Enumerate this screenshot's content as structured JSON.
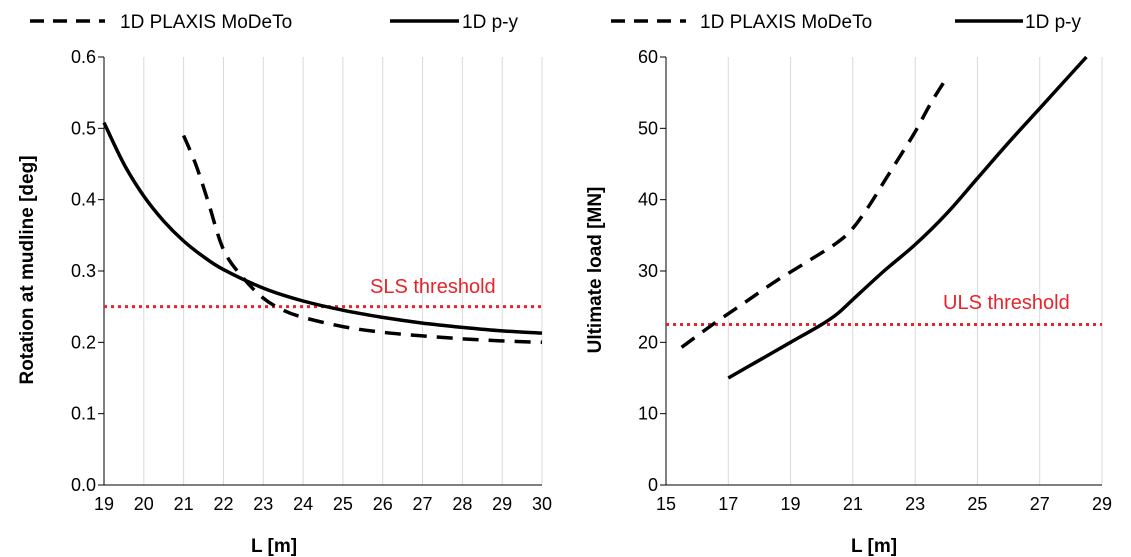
{
  "colors": {
    "line": "#000000",
    "threshold": "#e8242a",
    "grid": "#d9d9d9",
    "axis": "#000000"
  },
  "chart_data": [
    {
      "type": "line",
      "xlabel": "L [m]",
      "ylabel": "Rotation at mudline [deg]",
      "xlim": [
        19,
        30
      ],
      "ylim": [
        0,
        0.6
      ],
      "x_ticks": [
        "19",
        "20",
        "21",
        "22",
        "23",
        "24",
        "25",
        "26",
        "27",
        "28",
        "29",
        "30"
      ],
      "y_ticks": [
        "0.0",
        "0.1",
        "0.2",
        "0.3",
        "0.4",
        "0.5",
        "0.6"
      ],
      "grid": "vertical",
      "legend_position": "top",
      "series": [
        {
          "name": "1D PLAXIS MoDeTo",
          "style": "dashed",
          "x": [
            21,
            21.3,
            21.6,
            22,
            22.5,
            23,
            23.5,
            24,
            25,
            26,
            27,
            28,
            29,
            30
          ],
          "y": [
            0.49,
            0.45,
            0.4,
            0.33,
            0.29,
            0.262,
            0.245,
            0.235,
            0.222,
            0.214,
            0.209,
            0.205,
            0.202,
            0.2
          ]
        },
        {
          "name": "1D p-y",
          "style": "solid",
          "x": [
            19,
            19.5,
            20,
            20.5,
            21,
            21.5,
            22,
            23,
            24,
            25,
            26,
            27,
            28,
            29,
            30
          ],
          "y": [
            0.508,
            0.45,
            0.405,
            0.37,
            0.342,
            0.32,
            0.302,
            0.276,
            0.258,
            0.245,
            0.235,
            0.227,
            0.221,
            0.216,
            0.213
          ]
        }
      ],
      "threshold": {
        "label": "SLS threshold",
        "y": 0.25
      }
    },
    {
      "type": "line",
      "xlabel": "L [m]",
      "ylabel": "Ultimate load [MN]",
      "xlim": [
        15,
        29
      ],
      "ylim": [
        0,
        60
      ],
      "x_ticks": [
        "15",
        "17",
        "19",
        "21",
        "23",
        "25",
        "27",
        "29"
      ],
      "y_ticks": [
        "0",
        "10",
        "20",
        "30",
        "40",
        "50",
        "60"
      ],
      "grid": "vertical",
      "legend_position": "top",
      "series": [
        {
          "name": "1D PLAXIS MoDeTo",
          "style": "dashed",
          "x": [
            15.5,
            16.5,
            17.5,
            18.5,
            19.5,
            20.5,
            21,
            21.5,
            22,
            22.5,
            23,
            23.5,
            24
          ],
          "y": [
            19.3,
            22.5,
            25.5,
            28.5,
            31.2,
            34,
            36,
            39,
            42.5,
            46,
            49.5,
            53.5,
            57
          ]
        },
        {
          "name": "1D p-y",
          "style": "solid",
          "x": [
            17,
            18,
            19,
            20,
            20.5,
            21,
            22,
            23,
            24,
            25,
            26,
            27,
            28.5
          ],
          "y": [
            15,
            17.5,
            20,
            22.5,
            24,
            26,
            30,
            33.7,
            38,
            43,
            48,
            52.8,
            60
          ]
        }
      ],
      "threshold": {
        "label": "ULS threshold",
        "y": 22.5
      }
    }
  ]
}
